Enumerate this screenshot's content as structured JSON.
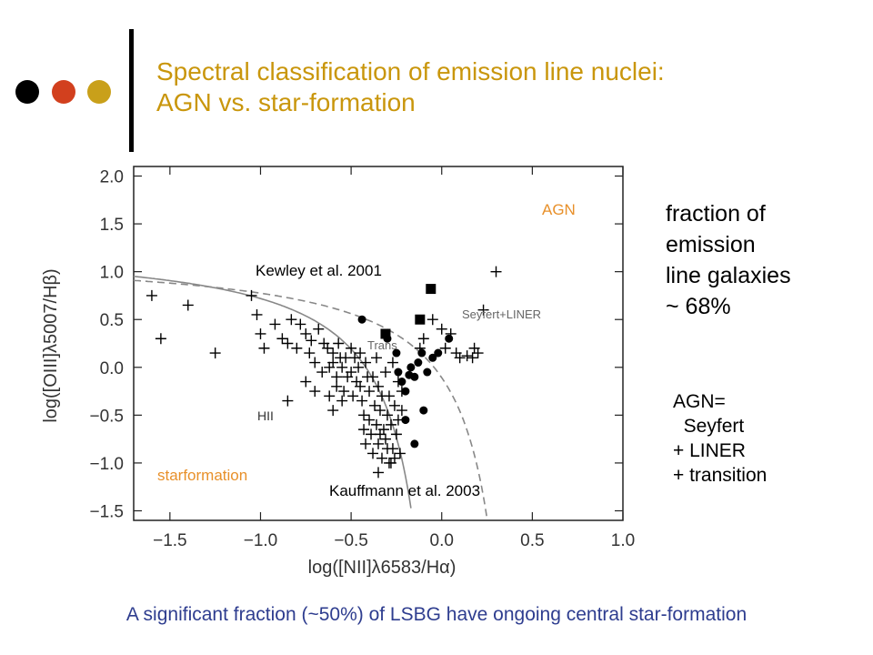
{
  "colors": {
    "dots": [
      "#000000",
      "#d2401e",
      "#c9a01a"
    ],
    "title": "#c9960c",
    "annotation_orange": "#e8902a",
    "footer": "#2e3d8f"
  },
  "slide": {
    "title_line1": "Spectral classification of emission line nuclei:",
    "title_line2": "AGN vs. star-formation",
    "fraction_lines": [
      "fraction of",
      "emission",
      "line galaxies",
      "~ 68%"
    ],
    "agn_def_lines": [
      "AGN=",
      "  Seyfert",
      "+ LINER",
      "+ transition"
    ],
    "footer": "A significant fraction (~50%) of LSBG have ongoing central star-formation"
  },
  "chart_data": {
    "type": "scatter",
    "xlabel": "log([NII]λ6583/Hα)",
    "ylabel": "log([OIII]λ5007/Hβ)",
    "xlim": [
      -1.7,
      1.0
    ],
    "ylim": [
      -1.6,
      2.1
    ],
    "xticks": [
      -1.5,
      -1.0,
      -0.5,
      0.0,
      0.5,
      1.0
    ],
    "xtick_labels": [
      "−1.5",
      "−1.0",
      "−0.5",
      "0.0",
      "0.5",
      "1.0"
    ],
    "yticks": [
      -1.5,
      -1.0,
      -0.5,
      0.0,
      0.5,
      1.0,
      1.5,
      2.0
    ],
    "ytick_labels": [
      "−1.5",
      "−1.0",
      "−0.5",
      "0.0",
      "0.5",
      "1.0",
      "1.5",
      "2.0"
    ],
    "annotations": {
      "agn": "AGN",
      "kewley": "Kewley et al. 2001",
      "seyfert_liner": "Seyfert+LINER",
      "trans": "Trans",
      "hii": "HII",
      "starformation": "starformation",
      "kauffmann": "Kauffmann et al. 2003"
    },
    "curves": [
      {
        "name": "Kewley et al. 2001",
        "style": "dashed",
        "equation": "0.61/(x-0.47)+1.19"
      },
      {
        "name": "Kauffmann et al. 2003",
        "style": "solid",
        "equation": "0.61/(x-0.05)+1.3"
      }
    ],
    "series": [
      {
        "name": "HII",
        "marker": "plus",
        "points": [
          [
            -1.6,
            0.75
          ],
          [
            -1.4,
            0.65
          ],
          [
            -1.55,
            0.3
          ],
          [
            -1.25,
            0.15
          ],
          [
            -1.05,
            0.75
          ],
          [
            -1.02,
            0.55
          ],
          [
            -1.0,
            0.35
          ],
          [
            -0.98,
            0.2
          ],
          [
            -0.92,
            0.45
          ],
          [
            -0.88,
            0.3
          ],
          [
            -0.85,
            0.25
          ],
          [
            -0.83,
            0.5
          ],
          [
            -0.8,
            0.2
          ],
          [
            -0.78,
            0.45
          ],
          [
            -0.75,
            0.35
          ],
          [
            -0.73,
            0.15
          ],
          [
            -0.72,
            0.28
          ],
          [
            -0.7,
            0.05
          ],
          [
            -0.68,
            0.4
          ],
          [
            -0.66,
            -0.05
          ],
          [
            -0.65,
            0.25
          ],
          [
            -0.63,
            0.2
          ],
          [
            -0.62,
            0.0
          ],
          [
            -0.6,
            0.15
          ],
          [
            -0.6,
            0.05
          ],
          [
            -0.58,
            -0.2
          ],
          [
            -0.57,
            0.25
          ],
          [
            -0.56,
            0.1
          ],
          [
            -0.55,
            0.0
          ],
          [
            -0.54,
            -0.25
          ],
          [
            -0.53,
            0.1
          ],
          [
            -0.52,
            -0.1
          ],
          [
            -0.5,
            0.2
          ],
          [
            -0.5,
            -0.05
          ],
          [
            -0.49,
            -0.3
          ],
          [
            -0.48,
            0.1
          ],
          [
            -0.47,
            -0.15
          ],
          [
            -0.46,
            0.0
          ],
          [
            -0.45,
            -0.2
          ],
          [
            -0.44,
            -0.35
          ],
          [
            -0.43,
            -0.5
          ],
          [
            -0.43,
            -0.65
          ],
          [
            -0.42,
            -0.8
          ],
          [
            -0.42,
            0.05
          ],
          [
            -0.41,
            -0.1
          ],
          [
            -0.4,
            -0.25
          ],
          [
            -0.4,
            -0.55
          ],
          [
            -0.39,
            -0.7
          ],
          [
            -0.38,
            -0.9
          ],
          [
            -0.38,
            -0.1
          ],
          [
            -0.37,
            -0.4
          ],
          [
            -0.36,
            0.1
          ],
          [
            -0.36,
            -0.6
          ],
          [
            -0.35,
            -0.8
          ],
          [
            -0.35,
            -0.2
          ],
          [
            -0.34,
            -0.45
          ],
          [
            -0.33,
            -0.95
          ],
          [
            -0.33,
            -0.3
          ],
          [
            -0.32,
            -0.65
          ],
          [
            -0.31,
            -0.05
          ],
          [
            -0.31,
            -0.75
          ],
          [
            -0.3,
            -0.5
          ],
          [
            -0.29,
            -1.0
          ],
          [
            -0.29,
            -0.3
          ],
          [
            -0.28,
            -0.6
          ],
          [
            -0.27,
            0.05
          ],
          [
            -0.27,
            -0.85
          ],
          [
            -0.26,
            -0.4
          ],
          [
            -0.25,
            -0.7
          ],
          [
            -0.24,
            -0.15
          ],
          [
            -0.24,
            -0.55
          ],
          [
            -0.23,
            -0.9
          ],
          [
            -0.22,
            -0.45
          ],
          [
            -0.35,
            -1.1
          ],
          [
            -0.28,
            -1.0
          ],
          [
            -0.22,
            -0.25
          ],
          [
            -0.55,
            -0.35
          ],
          [
            -0.6,
            -0.45
          ],
          [
            -0.7,
            -0.25
          ],
          [
            -0.75,
            -0.15
          ],
          [
            -0.85,
            -0.35
          ],
          [
            -0.45,
            0.15
          ],
          [
            -0.62,
            -0.3
          ],
          [
            -0.58,
            -0.1
          ],
          [
            -0.3,
            -0.85
          ],
          [
            -0.26,
            -0.95
          ],
          [
            -0.34,
            -0.7
          ],
          [
            -0.12,
            0.2
          ],
          [
            -0.05,
            0.5
          ],
          [
            0.02,
            0.2
          ],
          [
            0.05,
            0.35
          ],
          [
            0.08,
            0.15
          ],
          [
            0.1,
            0.1
          ],
          [
            0.14,
            0.12
          ],
          [
            0.17,
            0.1
          ],
          [
            0.18,
            0.2
          ],
          [
            0.2,
            0.15
          ],
          [
            0.23,
            0.6
          ],
          [
            0.3,
            1.0
          ],
          [
            -0.1,
            0.3
          ],
          [
            0.0,
            0.4
          ]
        ]
      },
      {
        "name": "AGN",
        "marker": "circle",
        "points": [
          [
            -0.44,
            0.5
          ],
          [
            -0.3,
            0.3
          ],
          [
            -0.25,
            0.15
          ],
          [
            -0.24,
            -0.05
          ],
          [
            -0.22,
            -0.15
          ],
          [
            -0.2,
            -0.25
          ],
          [
            -0.18,
            -0.08
          ],
          [
            -0.17,
            0.0
          ],
          [
            -0.15,
            -0.1
          ],
          [
            -0.13,
            0.05
          ],
          [
            -0.11,
            0.15
          ],
          [
            -0.2,
            -0.55
          ],
          [
            -0.15,
            -0.8
          ],
          [
            -0.1,
            -0.45
          ],
          [
            -0.08,
            -0.05
          ],
          [
            -0.05,
            0.1
          ],
          [
            -0.02,
            0.15
          ],
          [
            0.04,
            0.3
          ]
        ]
      },
      {
        "name": "Seyfert+LINER",
        "marker": "square",
        "points": [
          [
            -0.06,
            0.82
          ],
          [
            -0.12,
            0.5
          ],
          [
            -0.31,
            0.35
          ]
        ]
      }
    ]
  }
}
